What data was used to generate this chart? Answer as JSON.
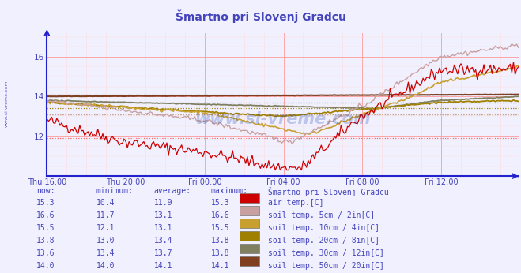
{
  "title": "Šmartno pri Slovenj Gradcu",
  "title_color": "#4444bb",
  "bg_color": "#f0f0ff",
  "plot_bg_color": "#f0f0ff",
  "grid_color_major": "#ff9999",
  "grid_color_minor": "#ffdddd",
  "x_axis_color": "#2222cc",
  "x_label_color": "#4444bb",
  "y_label_color": "#4444bb",
  "y_min": 10.0,
  "y_max": 17.2,
  "y_ticks": [
    12,
    14,
    16
  ],
  "n_points": 288,
  "series": {
    "air_temp": {
      "color": "#cc0000",
      "label": "air temp.[C]",
      "now": "15.3",
      "min": "10.4",
      "avg": "11.9",
      "max": "15.3"
    },
    "soil_5cm": {
      "color": "#c8a0a0",
      "label": "soil temp. 5cm / 2in[C]",
      "now": "16.6",
      "min": "11.7",
      "avg": "13.1",
      "max": "16.6"
    },
    "soil_10cm": {
      "color": "#c8a030",
      "label": "soil temp. 10cm / 4in[C]",
      "now": "15.5",
      "min": "12.1",
      "avg": "13.1",
      "max": "15.5"
    },
    "soil_20cm": {
      "color": "#a08000",
      "label": "soil temp. 20cm / 8in[C]",
      "now": "13.8",
      "min": "13.0",
      "avg": "13.4",
      "max": "13.8"
    },
    "soil_30cm": {
      "color": "#808060",
      "label": "soil temp. 30cm / 12in[C]",
      "now": "13.6",
      "min": "13.4",
      "avg": "13.7",
      "max": "13.8"
    },
    "soil_50cm": {
      "color": "#804020",
      "label": "soil temp. 50cm / 20in[C]",
      "now": "14.0",
      "min": "14.0",
      "avg": "14.1",
      "max": "14.1"
    }
  },
  "avg_line_values": {
    "air_temp": {
      "value": 11.9,
      "color": "#ff6666"
    },
    "soil_5cm": {
      "value": 13.1,
      "color": "#c8a0a0"
    },
    "soil_10cm": {
      "value": 13.1,
      "color": "#c8a030"
    },
    "soil_20cm": {
      "value": 13.4,
      "color": "#a08000"
    },
    "soil_30cm": {
      "value": 13.7,
      "color": "#808060"
    },
    "soil_50cm": {
      "value": 14.1,
      "color": "#804020"
    }
  },
  "x_tick_labels": [
    "Thu 16:00",
    "Thu 20:00",
    "Fri 00:00",
    "Fri 04:00",
    "Fri 08:00",
    "Fri 12:00"
  ],
  "x_tick_positions": [
    0,
    48,
    96,
    144,
    192,
    240
  ],
  "watermark": "www.si-vreme.com",
  "watermark_color": "#2244aa",
  "watermark_alpha": 0.25,
  "table_header": [
    "now:",
    "minimum:",
    "average:",
    "maximum:",
    "Šmartno pri Slovenj Gradcu"
  ],
  "table_row_colors": [
    "#cc0000",
    "#c8a0a0",
    "#c8a030",
    "#a08000",
    "#808060",
    "#804020"
  ],
  "sidebar_text": "www.si-vreme.com",
  "sidebar_color": "#4444bb",
  "text_color": "#4444bb"
}
